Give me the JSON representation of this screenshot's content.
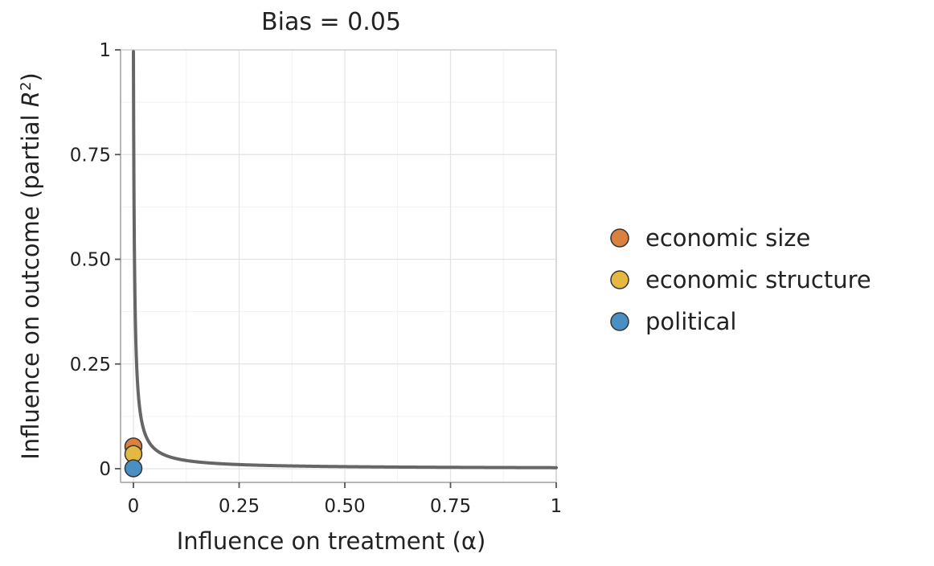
{
  "chart_data": {
    "type": "line",
    "title": "Bias = 0.05",
    "xlabel": "Influence on treatment (α)",
    "ylabel": {
      "main": "Influence on outcome (partial ",
      "r": "R",
      "sup": "2",
      "close": ")"
    },
    "xlim": [
      0,
      1
    ],
    "ylim": [
      0,
      1
    ],
    "xticks": [
      0,
      0.25,
      0.5,
      0.75,
      1
    ],
    "yticks": [
      0,
      0.25,
      0.5,
      0.75,
      1
    ],
    "xtick_labels": [
      "0",
      "0.25",
      "0.50",
      "0.75",
      "1"
    ],
    "ytick_labels": [
      "0",
      "0.25",
      "0.50",
      "0.75",
      "1"
    ],
    "grid": true,
    "legend_position": "right",
    "curve": {
      "bias": 0.05,
      "color": "#666666"
    },
    "series": [
      {
        "name": "economic size",
        "color": "#d9823f",
        "points": [
          {
            "x": 0,
            "y": 0.053
          }
        ]
      },
      {
        "name": "economic structure",
        "color": "#e5b842",
        "points": [
          {
            "x": 0,
            "y": 0.035
          }
        ]
      },
      {
        "name": "political",
        "color": "#4a8fc4",
        "points": [
          {
            "x": 0,
            "y": 0.001
          }
        ]
      }
    ]
  }
}
